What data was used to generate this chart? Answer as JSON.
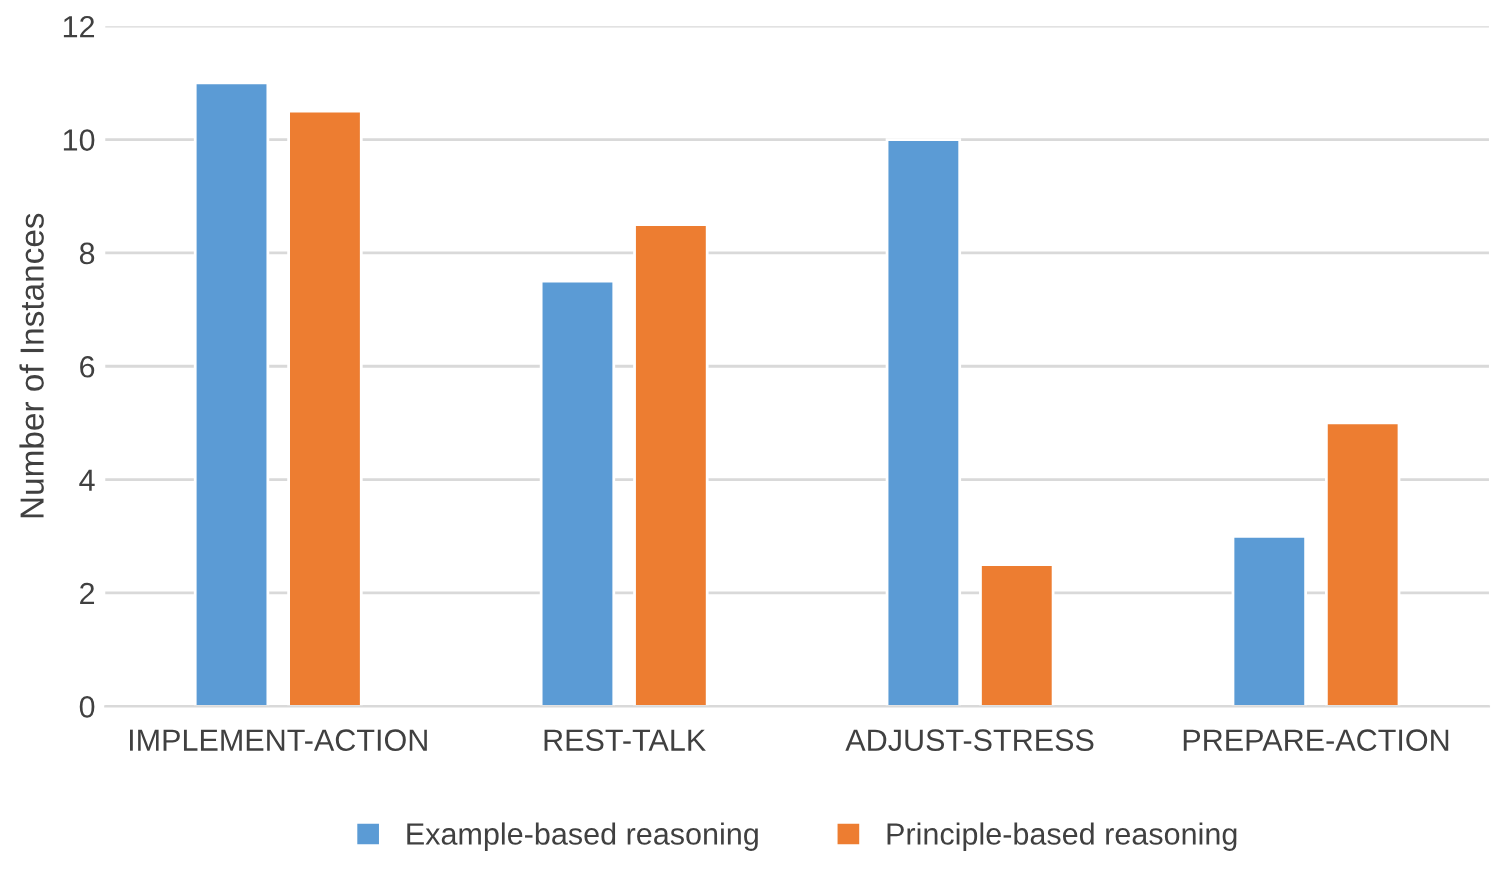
{
  "chart_data": {
    "type": "bar",
    "ylabel": "Number of Instances",
    "categories": [
      "IMPLEMENT-ACTION",
      "REST-TALK",
      "ADJUST-STRESS",
      "PREPARE-ACTION"
    ],
    "series": [
      {
        "name": "Example-based reasoning",
        "color": "#5b9bd5",
        "values": [
          11,
          7.5,
          10,
          3
        ]
      },
      {
        "name": "Principle-based reasoning",
        "color": "#ed7d31",
        "values": [
          10.5,
          8.5,
          2.5,
          5
        ]
      }
    ],
    "ylim": [
      0,
      12
    ],
    "yticks": [
      0,
      2,
      4,
      6,
      8,
      10,
      12
    ],
    "grid": "y",
    "legend": "bottom"
  }
}
